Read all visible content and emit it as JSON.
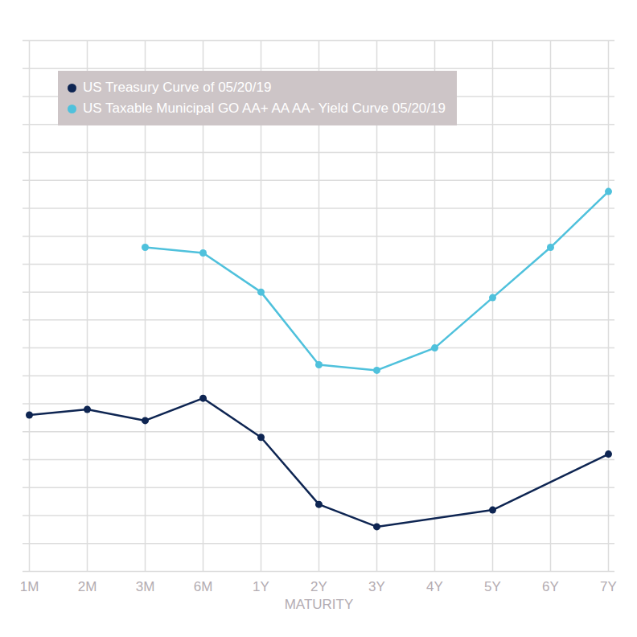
{
  "chart_data": {
    "type": "line",
    "categories": [
      "1M",
      "2M",
      "3M",
      "6M",
      "1Y",
      "2Y",
      "3Y",
      "4Y",
      "5Y",
      "6Y",
      "7Y"
    ],
    "x_label": "MATURITY",
    "series": [
      {
        "name": "US Treasury Curve of 05/20/19",
        "color": "#0e2552",
        "marker": "circle",
        "values": [
          2.38,
          2.39,
          2.37,
          2.41,
          2.34,
          2.22,
          2.18,
          null,
          2.21,
          null,
          2.31
        ]
      },
      {
        "name": "US Taxable Municipal GO AA+ AA AA- Yield Curve 05/20/19",
        "color": "#4fc1dc",
        "marker": "circle",
        "values": [
          null,
          null,
          2.68,
          2.67,
          2.6,
          2.47,
          2.46,
          2.5,
          2.59,
          2.68,
          2.78
        ]
      }
    ],
    "ylim": [
      2.1,
      3.05
    ],
    "yticks": [
      2.1,
      2.15,
      2.2,
      2.25,
      2.3,
      2.35,
      2.4,
      2.45,
      2.5,
      2.55,
      2.6,
      2.65,
      2.7,
      2.75,
      2.8,
      2.85,
      2.9,
      2.95,
      3.0,
      3.05
    ],
    "grid": true,
    "legend": "top-left",
    "tick_labels": "x"
  }
}
